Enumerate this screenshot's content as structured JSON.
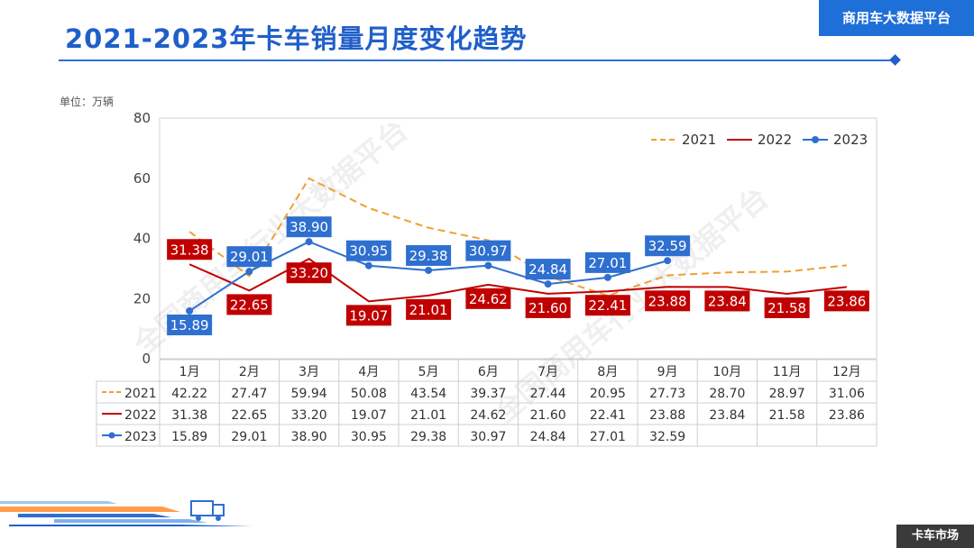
{
  "header": {
    "title": "2021-2023年卡车销量月度变化趋势",
    "brand": "商用车大数据平台"
  },
  "unit_label": "单位：万辆",
  "footer_tag": "卡车市场",
  "watermark": "全国商用车行业大数据平台",
  "colors": {
    "accent": "#1f5fc9",
    "s2021": "#f0a030",
    "s2022": "#c00000",
    "s2023": "#2e6fd0"
  },
  "chart_data": {
    "type": "line",
    "title": "2021-2023年卡车销量月度变化趋势",
    "ylabel": "单位：万辆",
    "ylim": [
      0,
      80
    ],
    "yticks": [
      0,
      20,
      40,
      60,
      80
    ],
    "grid": false,
    "legend": "top-right",
    "categories": [
      "1月",
      "2月",
      "3月",
      "4月",
      "5月",
      "6月",
      "7月",
      "8月",
      "9月",
      "10月",
      "11月",
      "12月"
    ],
    "series": [
      {
        "name": "2021",
        "style": "dashed",
        "values": [
          42.22,
          27.47,
          59.94,
          50.08,
          43.54,
          39.37,
          27.44,
          20.95,
          27.73,
          28.7,
          28.97,
          31.06
        ]
      },
      {
        "name": "2022",
        "style": "solid",
        "values": [
          31.38,
          22.65,
          33.2,
          19.07,
          21.01,
          24.62,
          21.6,
          22.41,
          23.88,
          23.84,
          21.58,
          23.86
        ]
      },
      {
        "name": "2023",
        "style": "solid-marker",
        "values": [
          15.89,
          29.01,
          38.9,
          30.95,
          29.38,
          30.97,
          24.84,
          27.01,
          32.59,
          null,
          null,
          null
        ]
      }
    ]
  }
}
